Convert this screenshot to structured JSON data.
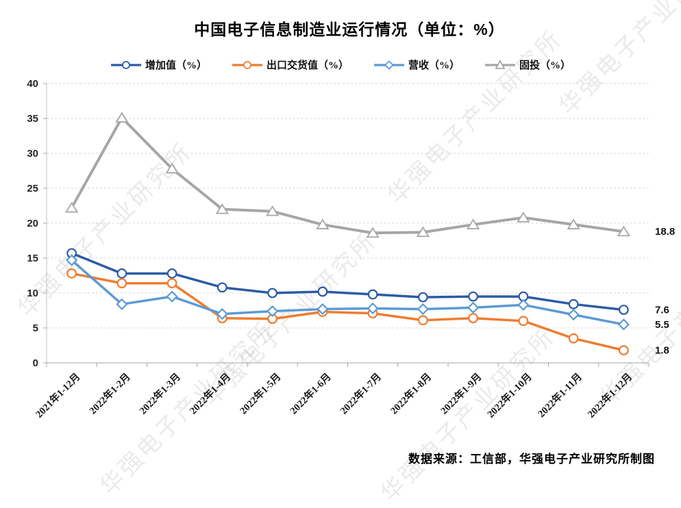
{
  "title": "中国电子信息制造业运行情况（单位：%）",
  "watermark": {
    "text": "华强电子产业研究所"
  },
  "source_note": "数据来源：工信部，华强电子产业研究所制图",
  "chart_data": {
    "type": "line",
    "title": "中国电子信息制造业运行情况（单位：%）",
    "xlabel": "",
    "ylabel": "",
    "ylim": [
      0,
      40
    ],
    "ytick": 5,
    "grid": "horizontal-dashed",
    "legend_position": "top",
    "categories": [
      "2021年1-12月",
      "2022年1-2月",
      "2022年1-3月",
      "2022年1-4月",
      "2022年1-5月",
      "2022年1-6月",
      "2022年1-7月",
      "2022年1-8月",
      "2022年1-9月",
      "2022年1-10月",
      "2022年1-11月",
      "2022年1-12月"
    ],
    "series": [
      {
        "key": "added-value",
        "name": "增加值（%）",
        "color": "#2D5BA5",
        "marker": "circle",
        "line_width": 3.5,
        "values": [
          15.7,
          12.8,
          12.8,
          10.8,
          10.0,
          10.2,
          9.8,
          9.4,
          9.5,
          9.5,
          8.4,
          7.6
        ]
      },
      {
        "key": "export-delivery-value",
        "name": "出口交货值（%）",
        "color": "#ED7D31",
        "marker": "circle",
        "line_width": 3.5,
        "values": [
          12.8,
          11.4,
          11.4,
          6.4,
          6.3,
          7.3,
          7.1,
          6.1,
          6.4,
          6.0,
          3.5,
          1.8
        ]
      },
      {
        "key": "revenue",
        "name": "营收（%）",
        "color": "#5B9BD5",
        "marker": "diamond",
        "line_width": 3.5,
        "values": [
          14.7,
          8.4,
          9.5,
          7.0,
          7.4,
          7.7,
          7.8,
          7.7,
          7.9,
          8.3,
          6.9,
          5.5
        ]
      },
      {
        "key": "fixed-investment",
        "name": "固投（%）",
        "color": "#A6A6A6",
        "marker": "triangle",
        "line_width": 4,
        "values": [
          22.2,
          35.1,
          27.8,
          22.0,
          21.7,
          19.8,
          18.6,
          18.7,
          19.8,
          20.8,
          19.8,
          18.8
        ]
      }
    ],
    "end_labels": [
      "7.6",
      "1.8",
      "5.5",
      "18.8"
    ]
  }
}
